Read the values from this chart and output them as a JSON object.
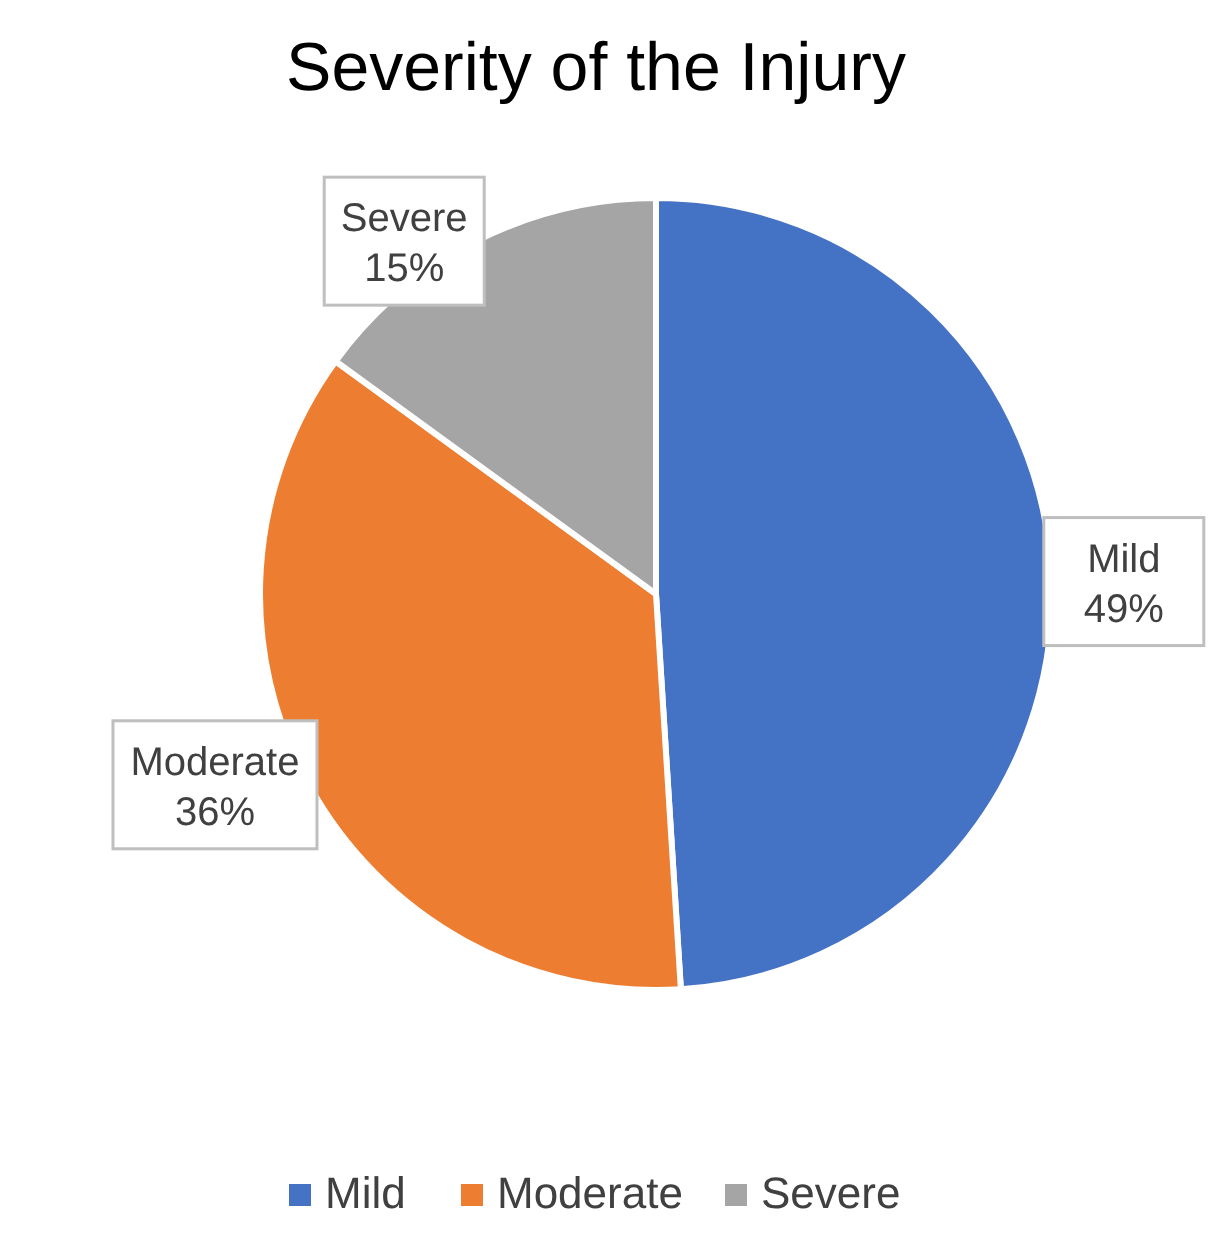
{
  "chart_data": {
    "type": "pie",
    "title": "Severity of the Injury",
    "categories": [
      "Mild",
      "Moderate",
      "Severe"
    ],
    "values": [
      49,
      36,
      15
    ],
    "colors": [
      "#4472c4",
      "#ed7d31",
      "#a5a5a5"
    ],
    "value_labels": [
      "49%",
      "36%",
      "15%"
    ],
    "legend": "bottom"
  }
}
